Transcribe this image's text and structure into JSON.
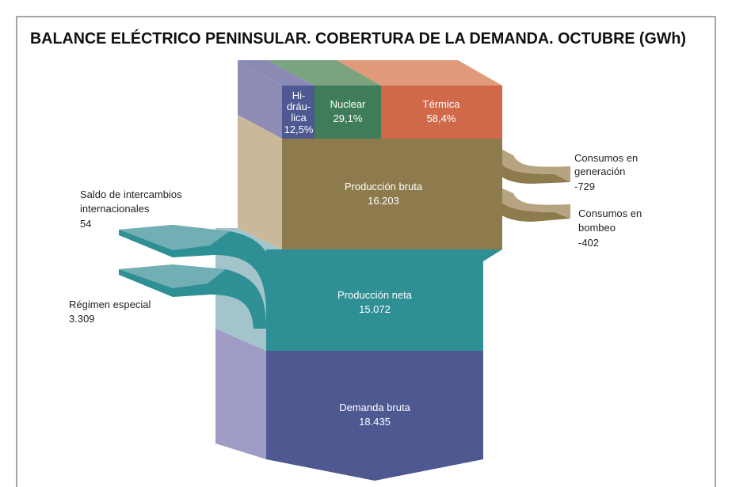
{
  "title": "BALANCE ELÉCTRICO PENINSULAR. COBERTURA DE LA DEMANDA. OCTUBRE (GWh)",
  "nodes": {
    "hidraulica": {
      "label": [
        "Hi-",
        "dráu-",
        "lica"
      ],
      "value": "12,5%"
    },
    "nuclear": {
      "label": [
        "Nuclear"
      ],
      "value": "29,1%"
    },
    "termica": {
      "label": [
        "Térmica"
      ],
      "value": "58,4%"
    },
    "produccion_bruta": {
      "label": [
        "Producción bruta"
      ],
      "value": "16.203"
    },
    "consumos_generacion": {
      "label": [
        "Consumos en",
        "generación"
      ],
      "value": "-729"
    },
    "consumos_bombeo": {
      "label": [
        "Consumos en",
        "bombeo"
      ],
      "value": "-402"
    },
    "saldo_intercambios": {
      "label": [
        "Saldo de intercambios",
        "internacionales"
      ],
      "value": "54"
    },
    "regimen_especial": {
      "label": [
        "Régimen especial"
      ],
      "value": "3.309"
    },
    "produccion_neta": {
      "label": [
        "Producción neta"
      ],
      "value": "15.072"
    },
    "demanda_bruta": {
      "label": [
        "Demanda bruta"
      ],
      "value": "18.435"
    }
  }
}
